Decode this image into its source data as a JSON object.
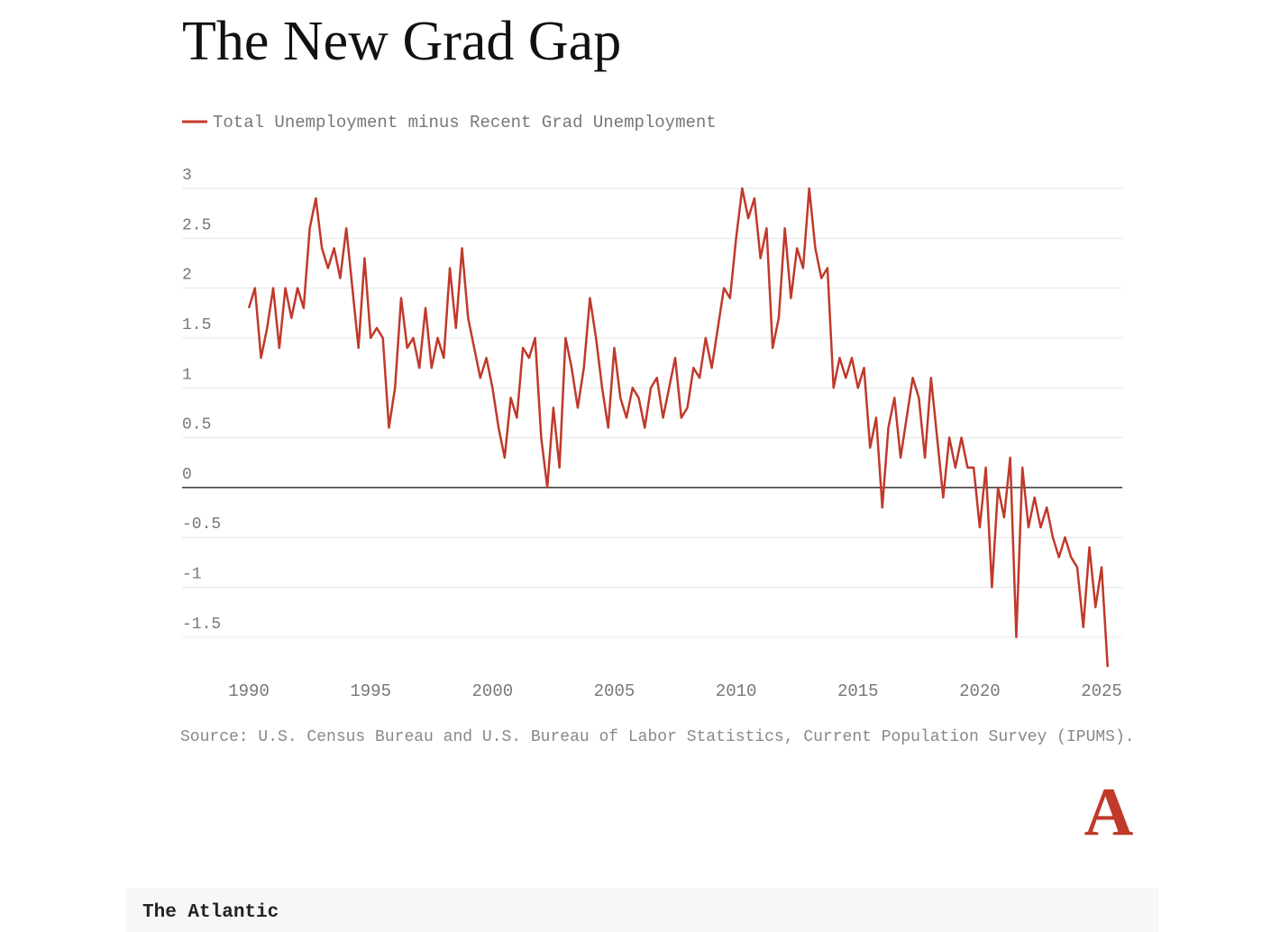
{
  "chart_data": {
    "type": "line",
    "title": "The New Grad Gap",
    "x": [
      1990,
      1990.25,
      1990.5,
      1990.75,
      1991,
      1991.25,
      1991.5,
      1991.75,
      1992,
      1992.25,
      1992.5,
      1992.75,
      1993,
      1993.25,
      1993.5,
      1993.75,
      1994,
      1994.25,
      1994.5,
      1994.75,
      1995,
      1995.25,
      1995.5,
      1995.75,
      1996,
      1996.25,
      1996.5,
      1996.75,
      1997,
      1997.25,
      1997.5,
      1997.75,
      1998,
      1998.25,
      1998.5,
      1998.75,
      1999,
      1999.25,
      1999.5,
      1999.75,
      2000,
      2000.25,
      2000.5,
      2000.75,
      2001,
      2001.25,
      2001.5,
      2001.75,
      2002,
      2002.25,
      2002.5,
      2002.75,
      2003,
      2003.25,
      2003.5,
      2003.75,
      2004,
      2004.25,
      2004.5,
      2004.75,
      2005,
      2005.25,
      2005.5,
      2005.75,
      2006,
      2006.25,
      2006.5,
      2006.75,
      2007,
      2007.25,
      2007.5,
      2007.75,
      2008,
      2008.25,
      2008.5,
      2008.75,
      2009,
      2009.25,
      2009.5,
      2009.75,
      2010,
      2010.25,
      2010.5,
      2010.75,
      2011,
      2011.25,
      2011.5,
      2011.75,
      2012,
      2012.25,
      2012.5,
      2012.75,
      2013,
      2013.25,
      2013.5,
      2013.75,
      2014,
      2014.25,
      2014.5,
      2014.75,
      2015,
      2015.25,
      2015.5,
      2015.75,
      2016,
      2016.25,
      2016.5,
      2016.75,
      2017,
      2017.25,
      2017.5,
      2017.75,
      2018,
      2018.25,
      2018.5,
      2018.75,
      2019,
      2019.25,
      2019.5,
      2019.75,
      2020,
      2020.25,
      2020.5,
      2020.75,
      2021,
      2021.25,
      2021.5,
      2021.75,
      2022,
      2022.25,
      2022.5,
      2022.75,
      2023,
      2023.25,
      2023.5,
      2023.75,
      2024,
      2024.25,
      2024.5,
      2024.75,
      2025,
      2025.25
    ],
    "series": [
      {
        "name": "Total Unemployment minus Recent Grad Unemployment",
        "color": "#c0392b",
        "values": [
          1.8,
          2.0,
          1.3,
          1.6,
          2.0,
          1.4,
          2.0,
          1.7,
          2.0,
          1.8,
          2.6,
          2.9,
          2.4,
          2.2,
          2.4,
          2.1,
          2.6,
          2.0,
          1.4,
          2.3,
          1.5,
          1.6,
          1.5,
          0.6,
          1.0,
          1.9,
          1.4,
          1.5,
          1.2,
          1.8,
          1.2,
          1.5,
          1.3,
          2.2,
          1.6,
          2.4,
          1.7,
          1.4,
          1.1,
          1.3,
          1.0,
          0.6,
          0.3,
          0.9,
          0.7,
          1.4,
          1.3,
          1.5,
          0.5,
          0.0,
          0.8,
          0.2,
          1.5,
          1.2,
          0.8,
          1.2,
          1.9,
          1.5,
          1.0,
          0.6,
          1.4,
          0.9,
          0.7,
          1.0,
          0.9,
          0.6,
          1.0,
          1.1,
          0.7,
          1.0,
          1.3,
          0.7,
          0.8,
          1.2,
          1.1,
          1.5,
          1.2,
          1.6,
          2.0,
          1.9,
          2.5,
          3.0,
          2.7,
          2.9,
          2.3,
          2.6,
          1.4,
          1.7,
          2.6,
          1.9,
          2.4,
          2.2,
          3.0,
          2.4,
          2.1,
          2.2,
          1.0,
          1.3,
          1.1,
          1.3,
          1.0,
          1.2,
          0.4,
          0.7,
          -0.2,
          0.6,
          0.9,
          0.3,
          0.7,
          1.1,
          0.9,
          0.3,
          1.1,
          0.5,
          -0.1,
          0.5,
          0.2,
          0.5,
          0.2,
          0.2,
          -0.4,
          0.2,
          -1.0,
          0.0,
          -0.3,
          0.3,
          -1.5,
          0.2,
          -0.4,
          -0.1,
          -0.4,
          -0.2,
          -0.5,
          -0.7,
          -0.5,
          -0.7,
          -0.8,
          -1.4,
          -0.6,
          -1.2,
          -0.8,
          -1.8
        ]
      }
    ],
    "xlim": [
      1987.26,
      2025.85
    ],
    "xticks": [
      1990,
      1995,
      2000,
      2005,
      2010,
      2015,
      2020,
      2025
    ],
    "ylim": [
      -1.8,
      3
    ],
    "yticks": [
      3,
      2.5,
      2,
      1.5,
      1,
      0.5,
      0,
      -0.5,
      -1,
      -1.5
    ],
    "grid": true,
    "source": "Source: U.S. Census Bureau and U.S. Bureau of Labor Statistics, Current Population Survey (IPUMS).",
    "logo": "A",
    "publisher": "The Atlantic"
  }
}
